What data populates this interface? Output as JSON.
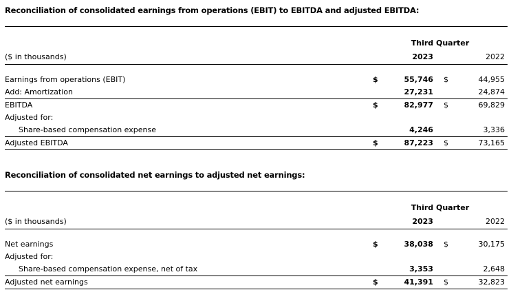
{
  "page": {
    "background_color": "#ffffff",
    "text_color": "#000000",
    "rule_color": "#000000"
  },
  "sections": [
    {
      "title": "Reconciliation of consolidated earnings from operations (EBIT) to EBITDA and adjusted EBITDA:",
      "table": {
        "group_header": "Third Quarter",
        "left_header": "($ in thousands)",
        "year_current": "2023",
        "year_prior": "2022",
        "rows": [
          {
            "label": "Earnings from operations (EBIT)",
            "indent": false,
            "cur_sym": "$",
            "cur": "55,746",
            "pri_sym": "$",
            "pri": "44,955",
            "rule_below": false
          },
          {
            "label": "Add: Amortization",
            "indent": false,
            "cur_sym": "",
            "cur": "27,231",
            "pri_sym": "",
            "pri": "24,874",
            "rule_below": true
          },
          {
            "label": "EBITDA",
            "indent": false,
            "cur_sym": "$",
            "cur": "82,977",
            "pri_sym": "$",
            "pri": "69,829",
            "rule_below": false
          },
          {
            "label": "Adjusted for:",
            "indent": false,
            "cur_sym": "",
            "cur": "",
            "pri_sym": "",
            "pri": "",
            "rule_below": false
          },
          {
            "label": "Share-based compensation expense",
            "indent": true,
            "cur_sym": "",
            "cur": "4,246",
            "pri_sym": "",
            "pri": "3,336",
            "rule_below": true
          },
          {
            "label": "Adjusted EBITDA",
            "indent": false,
            "cur_sym": "$",
            "cur": "87,223",
            "pri_sym": "$",
            "pri": "73,165",
            "rule_below": false
          }
        ]
      }
    },
    {
      "title": "Reconciliation of consolidated net earnings to adjusted net earnings:",
      "table": {
        "group_header": "Third Quarter",
        "left_header": "($ in thousands)",
        "year_current": "2023",
        "year_prior": "2022",
        "rows": [
          {
            "label": "Net earnings",
            "indent": false,
            "cur_sym": "$",
            "cur": "38,038",
            "pri_sym": "$",
            "pri": "30,175",
            "rule_below": false
          },
          {
            "label": "Adjusted for:",
            "indent": false,
            "cur_sym": "",
            "cur": "",
            "pri_sym": "",
            "pri": "",
            "rule_below": false
          },
          {
            "label": "Share-based compensation expense, net of tax",
            "indent": true,
            "cur_sym": "",
            "cur": "3,353",
            "pri_sym": "",
            "pri": "2,648",
            "rule_below": true
          },
          {
            "label": "Adjusted net earnings",
            "indent": false,
            "cur_sym": "$",
            "cur": "41,391",
            "pri_sym": "$",
            "pri": "32,823",
            "rule_below": false
          }
        ]
      }
    }
  ]
}
